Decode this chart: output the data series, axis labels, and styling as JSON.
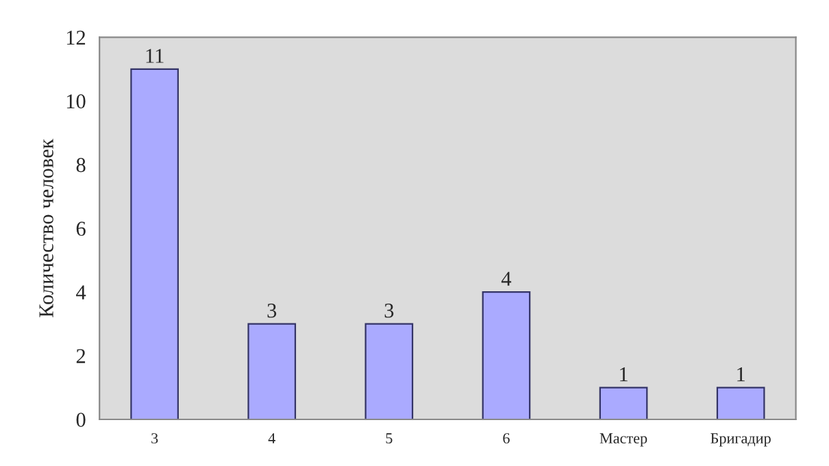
{
  "chart_data": {
    "type": "bar",
    "ylabel": "Количество человек",
    "categories": [
      "3",
      "4",
      "5",
      "6",
      "Мастер",
      "Бригадир"
    ],
    "values": [
      11,
      3,
      3,
      4,
      1,
      1
    ],
    "color": "#aaaaff",
    "ylim": [
      0,
      12
    ],
    "yticks": [
      0,
      2,
      4,
      6,
      8,
      10,
      12
    ],
    "data_labels": true,
    "legend": false
  }
}
